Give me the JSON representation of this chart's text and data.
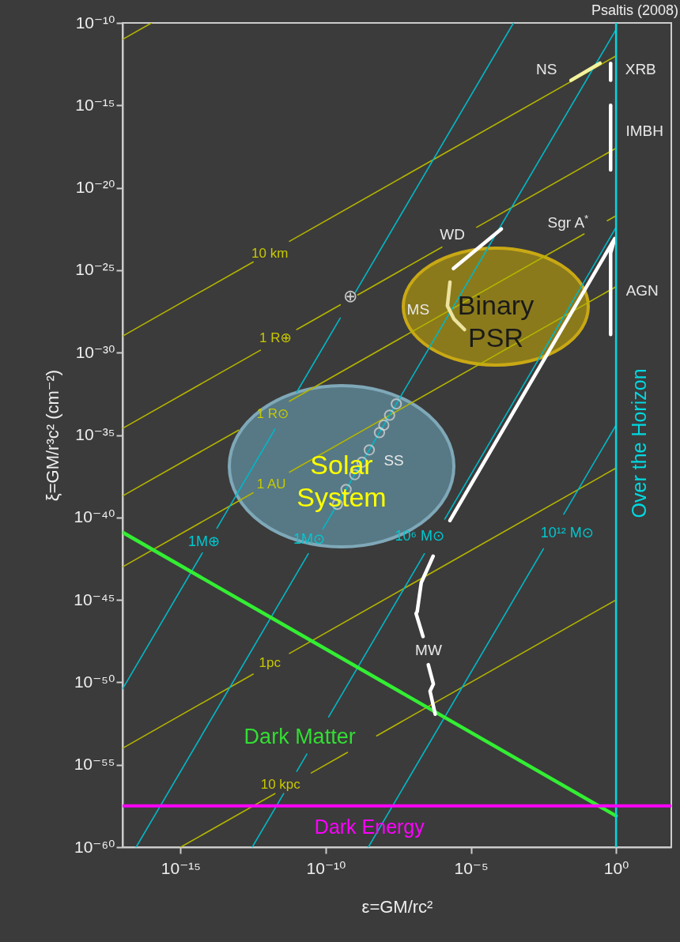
{
  "chart_data": {
    "type": "line",
    "xlabel": "ε=GM/rc²",
    "ylabel": "ξ=GM/r³c² (cm⁻²)",
    "log": "xy",
    "xlim": [
      1e-17,
      80
    ],
    "ylim": [
      1e-60,
      1e-10
    ],
    "xticks": [
      {
        "value": 1e-15,
        "label": "10⁻¹⁵"
      },
      {
        "value": 1e-10,
        "label": "10⁻¹⁰"
      },
      {
        "value": 1e-05,
        "label": "10⁻⁵"
      },
      {
        "value": 1,
        "label": "10⁰"
      }
    ],
    "yticks": [
      {
        "value": 1e-60,
        "label": "10⁻⁶⁰"
      },
      {
        "value": 1e-55,
        "label": "10⁻⁵⁵"
      },
      {
        "value": 1e-50,
        "label": "10⁻⁵⁰"
      },
      {
        "value": 1e-45,
        "label": "10⁻⁴⁵"
      },
      {
        "value": 1e-40,
        "label": "10⁻⁴⁰"
      },
      {
        "value": 1e-35,
        "label": "10⁻³⁵"
      },
      {
        "value": 1e-30,
        "label": "10⁻³⁰"
      },
      {
        "value": 1e-25,
        "label": "10⁻²⁵"
      },
      {
        "value": 1e-20,
        "label": "10⁻²⁰"
      },
      {
        "value": 1e-15,
        "label": "10⁻¹⁵"
      },
      {
        "value": 1e-10,
        "label": "10⁻¹⁰"
      }
    ],
    "series": [
      {
        "color": "#b4b400",
        "x": [
          1e-17,
          1e-16
        ],
        "values": [
          1e-11,
          1e-10
        ]
      },
      {
        "color": "#b4b400",
        "x": [
          1e-17,
          3.16e-13
        ],
        "values": [
          1e-29,
          3.16e-25
        ]
      },
      {
        "color": "#b4b400",
        "x": [
          5.62e-12,
          1
        ],
        "values": [
          5.62e-24,
          1e-12
        ]
      },
      {
        "color": "#b4b400",
        "x": [
          1e-17,
          5.62e-13
        ],
        "values": [
          2.51e-35,
          1.41e-30
        ]
      },
      {
        "color": "#b4b400",
        "x": [
          1e-11,
          3.16e-10
        ],
        "values": [
          2.51e-29,
          7.94e-28
        ]
      },
      {
        "color": "#b4b400",
        "x": [
          1.26e-09,
          1e-06
        ],
        "values": [
          3.16e-27,
          2.51e-24
        ]
      },
      {
        "color": "#b4b400",
        "x": [
          1.58e-05,
          1
        ],
        "values": [
          3.98e-23,
          2.51e-18
        ]
      },
      {
        "color": "#b4b400",
        "x": [
          1e-17,
          1e-13
        ],
        "values": [
          2e-39,
          2e-35
        ]
      },
      {
        "color": "#b4b400",
        "x": [
          5.62e-12,
          0.0794
        ],
        "values": [
          1.12e-33,
          1.58e-23
        ]
      },
      {
        "color": "#b4b400",
        "x": [
          0.501,
          1
        ],
        "values": [
          1e-22,
          2e-22
        ]
      },
      {
        "color": "#b4b400",
        "x": [
          1e-17,
          3.16e-13
        ],
        "values": [
          1e-43,
          3.16e-39
        ]
      },
      {
        "color": "#b4b400",
        "x": [
          5.62e-12,
          1
        ],
        "values": [
          5.62e-38,
          1e-26
        ]
      },
      {
        "color": "#b4b400",
        "x": [
          1e-17,
          3.16e-13
        ],
        "values": [
          1e-54,
          3.16e-50
        ]
      },
      {
        "color": "#b4b400",
        "x": [
          5.62e-12,
          1
        ],
        "values": [
          5.62e-49,
          1e-37
        ]
      },
      {
        "color": "#b4b400",
        "x": [
          1e-15,
          1.78e-12
        ],
        "values": [
          1e-60,
          1.78e-57
        ]
      },
      {
        "color": "#b4b400",
        "x": [
          3.16e-11,
          5.62e-10
        ],
        "values": [
          3.16e-56,
          5.62e-55
        ]
      },
      {
        "color": "#b4b400",
        "x": [
          5.62e-09,
          1
        ],
        "values": [
          5.62e-54,
          1e-45
        ]
      },
      {
        "color": "#00b8c8",
        "x": [
          1e-17,
          5.62e-15
        ],
        "values": [
          3.98e-51,
          7.08e-43
        ]
      },
      {
        "color": "#00b8c8",
        "x": [
          1.78e-14,
          1.78e-12
        ],
        "values": [
          2.24e-41,
          2.24e-35
        ]
      },
      {
        "color": "#00b8c8",
        "x": [
          1e-11,
          3.16e-10
        ],
        "values": [
          3.98e-33,
          1.26e-28
        ]
      },
      {
        "color": "#00b8c8",
        "x": [
          1e-09,
          0.000293
        ],
        "values": [
          3.98e-27,
          1e-10
        ]
      },
      {
        "color": "#00b8c8",
        "x": [
          2.93e-17,
          2.51e-11
        ],
        "values": [
          1e-60,
          6.31e-43
        ]
      },
      {
        "color": "#00b8c8",
        "x": [
          7.94e-11,
          1
        ],
        "values": [
          2e-41,
          3.98e-11
        ]
      },
      {
        "color": "#00b8c8",
        "x": [
          2.93e-13,
          3.55e-12
        ],
        "values": [
          1e-60,
          1.78e-57
        ]
      },
      {
        "color": "#00b8c8",
        "x": [
          1e-11,
          2.24e-11
        ],
        "values": [
          3.98e-56,
          4.47e-55
        ]
      },
      {
        "color": "#00b8c8",
        "x": [
          1.26e-10,
          2.51e-07
        ],
        "values": [
          7.94e-53,
          6.31e-43
        ]
      },
      {
        "color": "#00b8c8",
        "x": [
          1.26e-06,
          1
        ],
        "values": [
          7.94e-41,
          3.98e-23
        ]
      },
      {
        "color": "#00b8c8",
        "x": [
          2.93e-09,
          0.00316
        ],
        "values": [
          1e-60,
          1.26e-42
        ]
      },
      {
        "color": "#00b8c8",
        "x": [
          0.0158,
          1
        ],
        "values": [
          1.58e-40,
          3.98e-35
        ]
      },
      {
        "color": "#33ee33",
        "x": [
          1e-17,
          1
        ],
        "values": [
          1.26e-41,
          7.94e-59
        ]
      },
      {
        "color": "#f2f2a0",
        "x": [
          0.028,
          0.28
        ],
        "values": [
          3.3e-14,
          3.6e-13
        ]
      },
      {
        "color": "#ffffff",
        "x": [
          0.65,
          0.65
        ],
        "values": [
          3.5e-13,
          3.3e-14
        ]
      },
      {
        "color": "#ffffff",
        "x": [
          0.65,
          0.65
        ],
        "values": [
          1e-15,
          1.2e-19
        ]
      },
      {
        "color": "#ffffff",
        "x": [
          2.5e-06,
          0.000112
        ],
        "values": [
          1.26e-25,
          3.16e-23
        ]
      },
      {
        "color": "#ede3a0",
        "x": [
          1.9e-06,
          1.55e-06,
          2.6e-06,
          6e-06
        ],
        "values": [
          1.9e-26,
          6.9e-28,
          1.1e-28,
          2.5e-29
        ]
      },
      {
        "color": "#ffffff",
        "x": [
          1.9e-06,
          0.9,
          0.65,
          0.65
        ],
        "values": [
          6.5e-41,
          8.3e-24,
          1.1e-24,
          1.26e-29
        ]
      },
      {
        "color": "#ffffff",
        "x": [
          5e-07,
          1.95e-07,
          1.41e-07,
          1.29e-07,
          2.24e-07
        ],
        "values": [
          4.5e-43,
          1.12e-44,
          1.95e-46,
          1.48e-46,
          6.03e-48
        ]
      },
      {
        "color": "#ffffff",
        "x": [
          3.4e-07,
          5.1e-07,
          3.9e-07,
          5.9e-07
        ],
        "values": [
          1.17e-49,
          7.8e-51,
          2.9e-51,
          1.17e-52
        ]
      },
      {
        "type": "scatter",
        "marker": "circle",
        "color": "#dcdcdc",
        "x": [
          2.69e-08,
          1.58e-08,
          1e-08,
          7.08e-09,
          3.16e-09,
          1.78e-09,
          1e-09,
          5.01e-10,
          2.51e-10
        ],
        "values": [
          7.76e-34,
          1.58e-34,
          3.98e-35,
          1.41e-35,
          1.26e-36,
          2.24e-37,
          3.98e-38,
          5.01e-39,
          6.31e-40
        ]
      }
    ],
    "ref_lines": [
      {
        "axis": "x",
        "value": 1,
        "label": "Over the Horizon",
        "color": "#00d8e0"
      },
      {
        "axis": "y",
        "value": 3.16e-58,
        "label": "Dark Energy",
        "color": "#ff00ff"
      }
    ],
    "annotations": [
      "Psaltis (2008)",
      {
        "text": "NS",
        "x": 0.028,
        "y": 3.3e-14
      },
      {
        "text": "XRB",
        "x": 0.65,
        "y": 3.5e-13
      },
      {
        "text": "IMBH",
        "x": 0.65,
        "y": 1e-15
      },
      {
        "text": "WD",
        "x": 0.000112,
        "y": 3.16e-23
      },
      {
        "text": "Sgr A$^{*}$",
        "x": 0.9,
        "y": 8.3e-24
      },
      {
        "text": "AGN",
        "x": 0.65,
        "y": 1.1e-24
      },
      {
        "text": "MS",
        "x": 1.55e-06,
        "y": 6.9e-28
      },
      {
        "text": "SS",
        "x": 3.16e-09,
        "y": 1.26e-36
      },
      {
        "text": "MW",
        "x": 2.24e-07,
        "y": 6.03e-48
      },
      {
        "text": "10 km",
        "x": 3.16e-13,
        "y": 3.16e-25
      },
      {
        "text": "1 R⊕",
        "x": 5.62e-13,
        "y": 1.41e-30
      },
      {
        "text": "1 R⊙",
        "x": 1e-13,
        "y": 2e-35
      },
      {
        "text": "1 AU",
        "x": 3.16e-13,
        "y": 3.16e-39
      },
      {
        "text": "1pc",
        "x": 3.16e-13,
        "y": 3.16e-50
      },
      {
        "text": "10 kpc",
        "x": 1.78e-12,
        "y": 1.78e-57
      },
      {
        "text": "1M⊕",
        "x": 5.62e-15,
        "y": 7.08e-43
      },
      {
        "text": "1M⊙",
        "x": 2.51e-11,
        "y": 6.31e-43
      },
      {
        "text": "10⁶ M⊙",
        "x": 2.51e-07,
        "y": 6.31e-43
      },
      {
        "text": "10¹² M⊙",
        "x": 0.00316,
        "y": 1.26e-42
      },
      {
        "text": "Dark Matter",
        "x": 2.24e-11,
        "y": 4.47e-55
      },
      {
        "text": "⊕",
        "x": 3.16e-10,
        "y": 1.26e-28
      },
      "Binary PSR",
      "Solar System"
    ]
  }
}
